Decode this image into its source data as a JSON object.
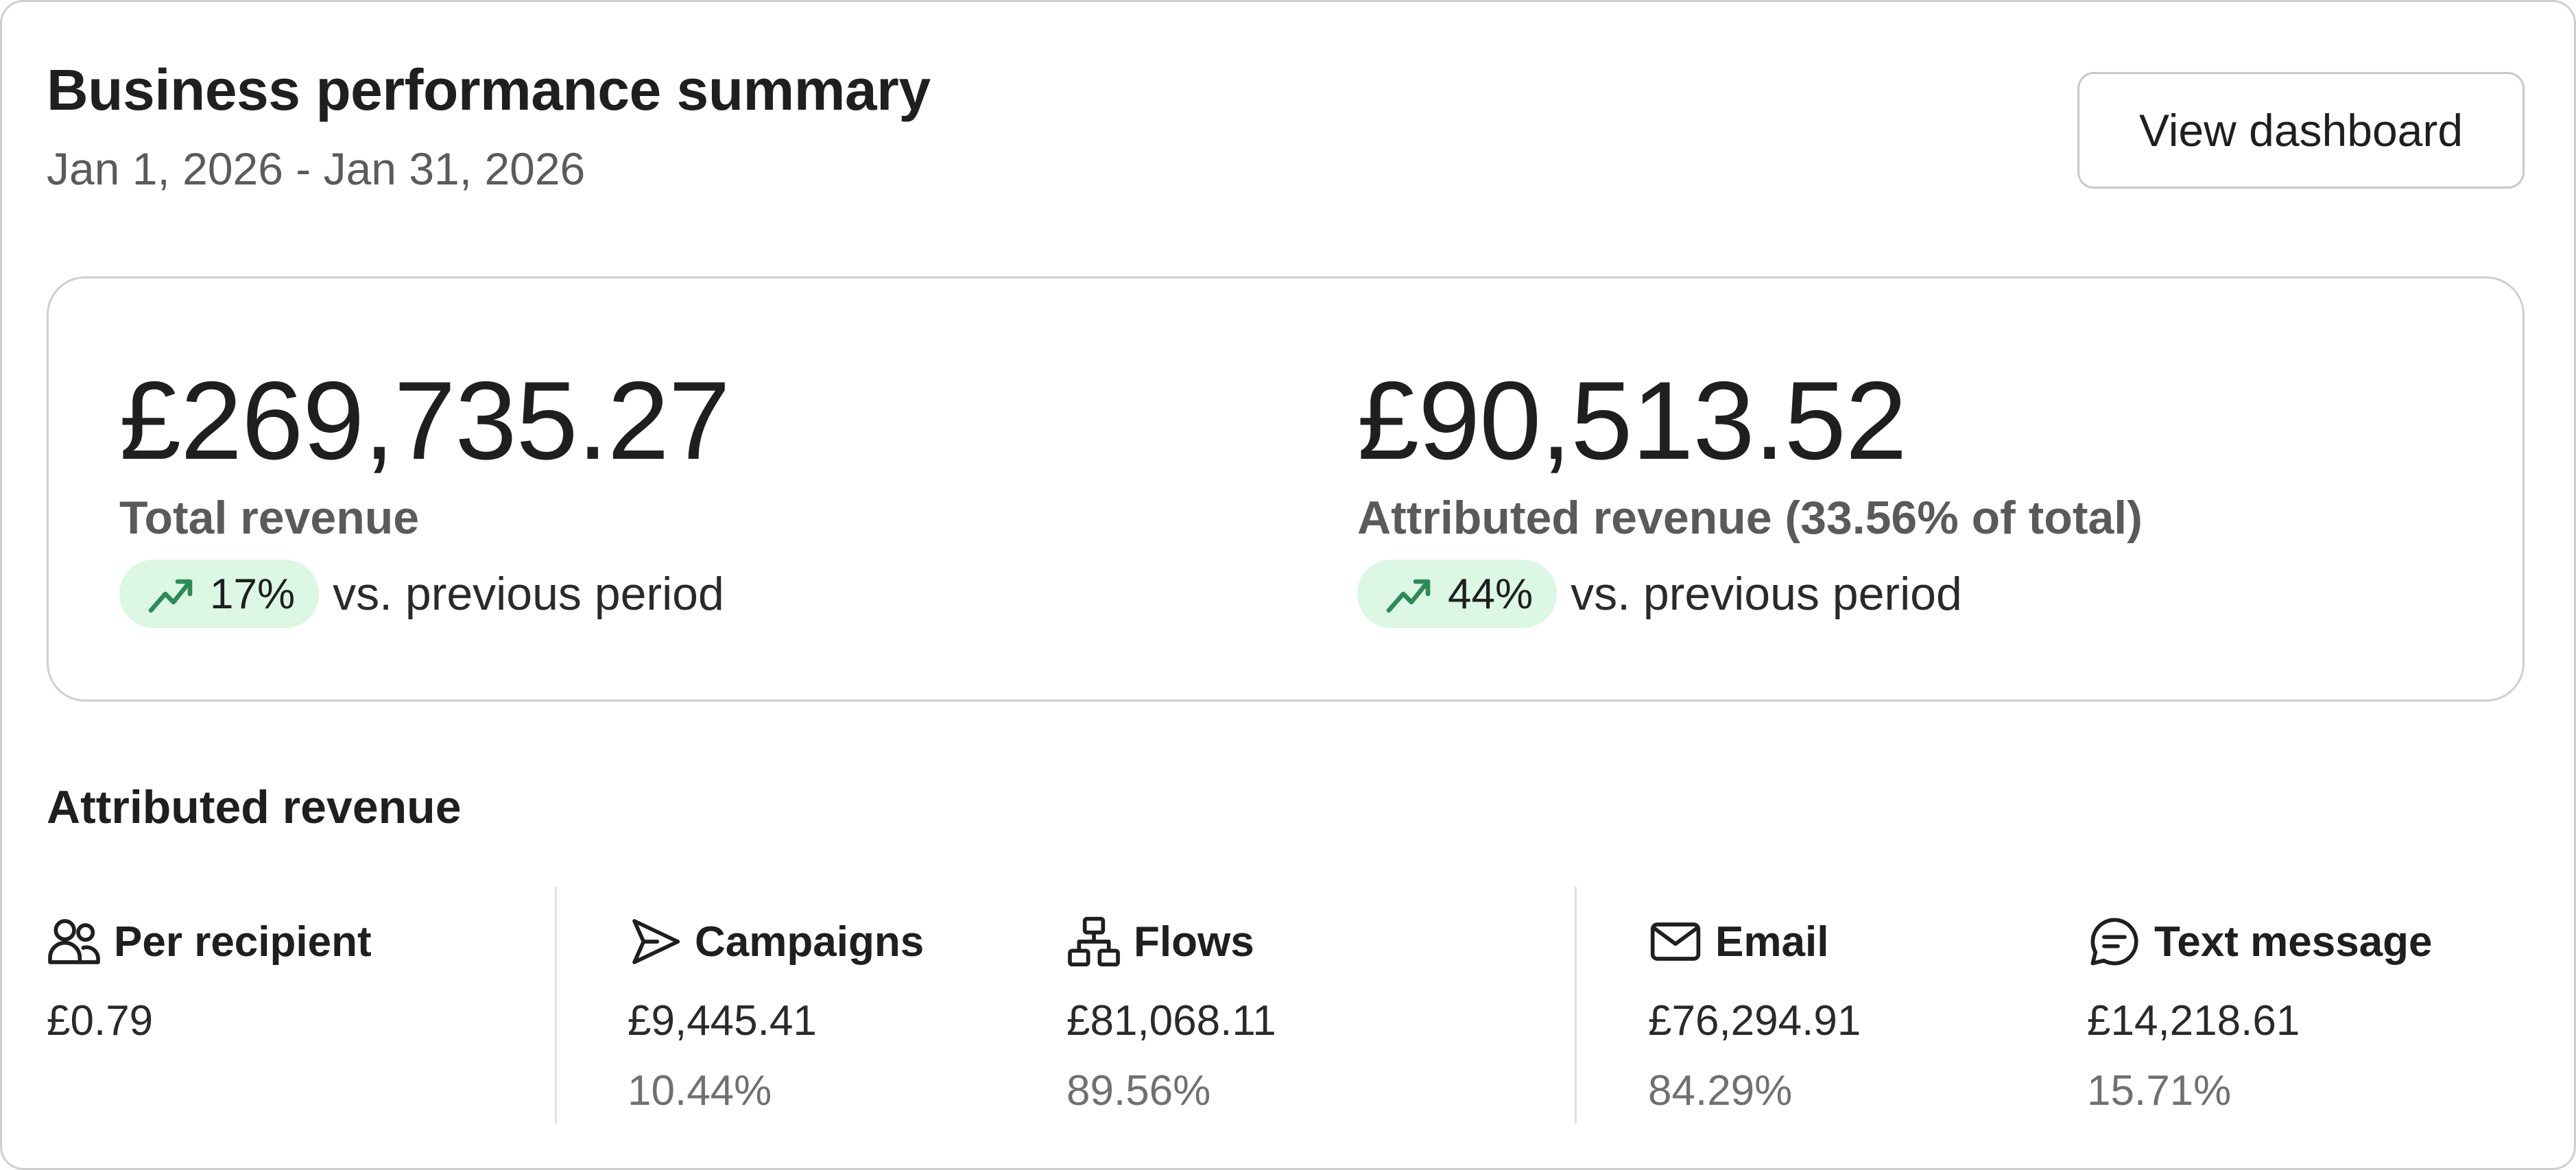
{
  "header": {
    "title": "Business performance summary",
    "date_range": "Jan 1, 2026 - Jan 31, 2026",
    "view_button_label": "View dashboard"
  },
  "summary": {
    "total_revenue": {
      "value": "£269,735.27",
      "label": "Total revenue",
      "change": "17%",
      "change_icon": "trending-up-icon",
      "comparison": "vs. previous period"
    },
    "attributed_revenue": {
      "value": "£90,513.52",
      "label": "Attributed revenue (33.56% of total)",
      "change": "44%",
      "change_icon": "trending-up-icon",
      "comparison": "vs. previous period"
    }
  },
  "breakdown": {
    "heading": "Attributed revenue",
    "items": [
      {
        "icon": "users-icon",
        "label": "Per recipient",
        "value": "£0.79"
      },
      {
        "icon": "send-icon",
        "label": "Campaigns",
        "value": "£9,445.41",
        "percent": "10.44%"
      },
      {
        "icon": "flow-icon",
        "label": "Flows",
        "value": "£81,068.11",
        "percent": "89.56%"
      },
      {
        "icon": "mail-icon",
        "label": "Email",
        "value": "£76,294.91",
        "percent": "84.29%"
      },
      {
        "icon": "chat-icon",
        "label": "Text message",
        "value": "£14,218.61",
        "percent": "15.71%"
      }
    ]
  },
  "colors": {
    "positive_pill_bg": "#dcf7e4",
    "positive_icon": "#2e8b57",
    "border": "#cfcfcf"
  }
}
